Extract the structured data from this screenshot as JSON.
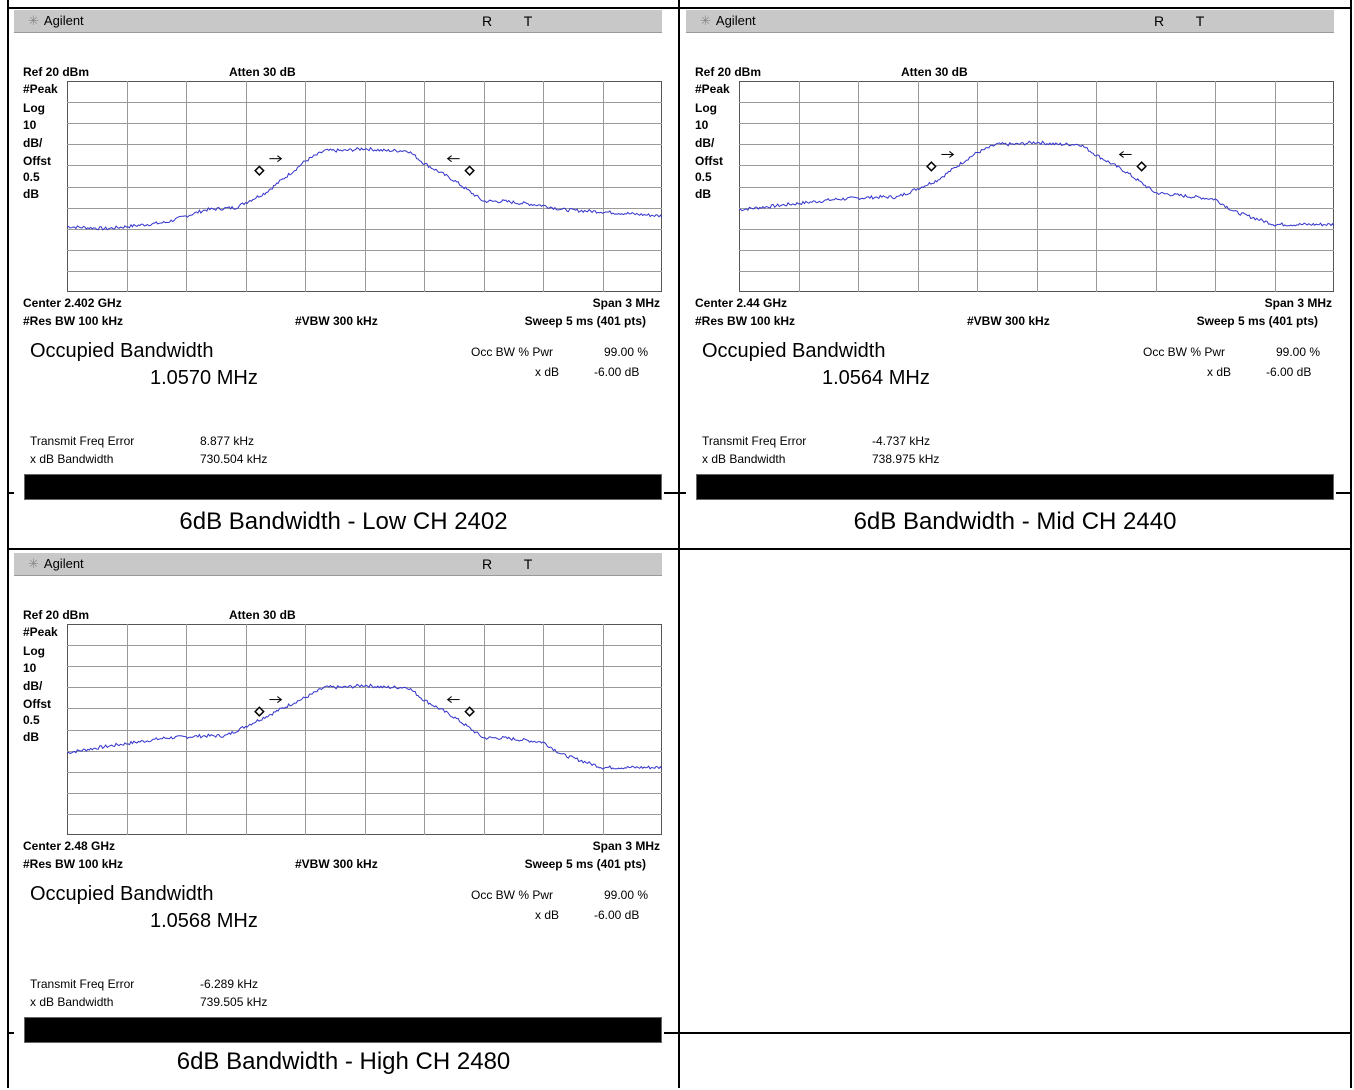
{
  "screens": [
    {
      "brand": "Agilent",
      "indicators": "R T",
      "ref": "Ref 20 dBm",
      "atten": "Atten 30 dB",
      "side_labels": [
        "#Peak",
        "Log",
        "10",
        "dB/",
        "Offst",
        "0.5",
        "dB"
      ],
      "center": "Center 2.402 GHz",
      "span": "Span 3 MHz",
      "res_bw": "#Res BW 100 kHz",
      "vbw": "#VBW 300 kHz",
      "sweep": "Sweep 5 ms (401 pts)",
      "occ_title": "Occupied Bandwidth",
      "occ_value": "1.0570 MHz",
      "occ_pwr_label": "Occ BW % Pwr",
      "occ_pwr_value": "99.00 %",
      "xdb_label": "x dB",
      "xdb_value": "-6.00 dB",
      "tfe_label": "Transmit Freq Error",
      "tfe_value": "8.877 kHz",
      "xbw_label": "x dB Bandwidth",
      "xbw_value": "730.504 kHz"
    },
    {
      "brand": "Agilent",
      "indicators": "R T",
      "ref": "Ref 20 dBm",
      "atten": "Atten 30 dB",
      "side_labels": [
        "#Peak",
        "Log",
        "10",
        "dB/",
        "Offst",
        "0.5",
        "dB"
      ],
      "center": "Center 2.44 GHz",
      "span": "Span 3 MHz",
      "res_bw": "#Res BW 100 kHz",
      "vbw": "#VBW 300 kHz",
      "sweep": "Sweep 5 ms (401 pts)",
      "occ_title": "Occupied Bandwidth",
      "occ_value": "1.0564 MHz",
      "occ_pwr_label": "Occ BW % Pwr",
      "occ_pwr_value": "99.00 %",
      "xdb_label": "x dB",
      "xdb_value": "-6.00 dB",
      "tfe_label": "Transmit Freq Error",
      "tfe_value": "-4.737 kHz",
      "xbw_label": "x dB Bandwidth",
      "xbw_value": "738.975 kHz"
    },
    {
      "brand": "Agilent",
      "indicators": "R T",
      "ref": "Ref 20 dBm",
      "atten": "Atten 30 dB",
      "side_labels": [
        "#Peak",
        "Log",
        "10",
        "dB/",
        "Offst",
        "0.5",
        "dB"
      ],
      "center": "Center 2.48 GHz",
      "span": "Span 3 MHz",
      "res_bw": "#Res BW 100 kHz",
      "vbw": "#VBW 300 kHz",
      "sweep": "Sweep 5 ms (401 pts)",
      "occ_title": "Occupied Bandwidth",
      "occ_value": "1.0568 MHz",
      "occ_pwr_label": "Occ BW % Pwr",
      "occ_pwr_value": "99.00 %",
      "xdb_label": "x dB",
      "xdb_value": "-6.00 dB",
      "tfe_label": "Transmit Freq Error",
      "tfe_value": "-6.289 kHz",
      "xbw_label": "x dB Bandwidth",
      "xbw_value": "739.505 kHz"
    }
  ],
  "captions": [
    "6dB Bandwidth - Low CH 2402",
    "6dB Bandwidth - Mid CH 2440",
    "6dB Bandwidth - High CH 2480"
  ],
  "chart_data": [
    {
      "type": "line",
      "xlim": [
        2.4005,
        2.4035
      ],
      "ylim": [
        -80,
        20
      ],
      "grid": true,
      "color": "#3333cc",
      "series": [
        {
          "x": [
            2.4005,
            2.4007,
            2.401,
            2.4012,
            2.40135,
            2.4015,
            2.40165,
            2.4017,
            2.4018,
            2.4019,
            2.402,
            2.4021,
            2.40222,
            2.4023,
            2.40245,
            2.4026,
            2.4027,
            2.4029,
            2.403,
            2.4032,
            2.4035
          ],
          "y": [
            -49,
            -50,
            -47,
            -41,
            -40,
            -33,
            -22,
            -18,
            -13,
            -13,
            -12,
            -13,
            -13,
            -19,
            -27,
            -37,
            -37,
            -39,
            -41,
            -42,
            -44
          ]
        }
      ],
      "markers": [
        {
          "x": 2.40147,
          "y": -22.5
        },
        {
          "x": 2.40253,
          "y": -22.5
        }
      ]
    },
    {
      "type": "line",
      "xlim": [
        2.4385,
        2.4415
      ],
      "ylim": [
        -80,
        20
      ],
      "grid": true,
      "color": "#3333cc",
      "series": [
        {
          "x": [
            2.4385,
            2.4387,
            2.439,
            2.4392,
            2.4393,
            2.4395,
            2.43965,
            2.4397,
            2.4398,
            2.4399,
            2.44,
            2.4401,
            2.44022,
            2.4403,
            2.44045,
            2.4406,
            2.4407,
            2.4409,
            2.441,
            2.4412,
            2.4415
          ],
          "y": [
            -41,
            -39,
            -36,
            -35,
            -35,
            -27,
            -17,
            -14,
            -10,
            -10,
            -9,
            -10,
            -10,
            -15,
            -23,
            -33,
            -34,
            -36,
            -42,
            -48,
            -48
          ]
        }
      ],
      "markers": [
        {
          "x": 2.43947,
          "y": -20.5
        },
        {
          "x": 2.44053,
          "y": -20.5
        }
      ]
    },
    {
      "type": "line",
      "xlim": [
        2.4785,
        2.4815
      ],
      "ylim": [
        -80,
        20
      ],
      "grid": true,
      "color": "#3333cc",
      "series": [
        {
          "x": [
            2.4785,
            2.4787,
            2.479,
            2.4792,
            2.4793,
            2.4795,
            2.47965,
            2.4797,
            2.4798,
            2.4799,
            2.48,
            2.4801,
            2.48022,
            2.4803,
            2.48045,
            2.4806,
            2.4807,
            2.4809,
            2.481,
            2.4812,
            2.4815
          ],
          "y": [
            -41,
            -38,
            -34,
            -33,
            -33,
            -24,
            -17,
            -15,
            -10,
            -10,
            -9,
            -10,
            -10,
            -16,
            -24,
            -34,
            -34,
            -36,
            -42,
            -48,
            -48
          ]
        }
      ],
      "markers": [
        {
          "x": 2.47947,
          "y": -21.5
        },
        {
          "x": 2.48053,
          "y": -21.5
        }
      ]
    }
  ]
}
